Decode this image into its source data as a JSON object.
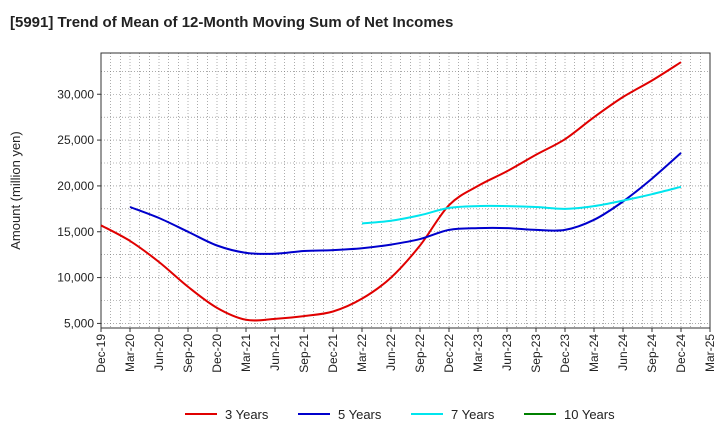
{
  "title": "[5991]  Trend of Mean of 12-Month Moving Sum of Net Incomes",
  "chart_data": {
    "type": "line",
    "title": "[5991]  Trend of Mean of 12-Month Moving Sum of Net Incomes",
    "xlabel": "",
    "ylabel": "Amount (million yen)",
    "ylim": [
      4500,
      34500
    ],
    "yticks": [
      5000,
      10000,
      15000,
      20000,
      25000,
      30000
    ],
    "ytick_labels": [
      "5,000",
      "10,000",
      "15,000",
      "20,000",
      "25,000",
      "30,000"
    ],
    "xticks": [
      "Dec-19",
      "Mar-20",
      "Jun-20",
      "Sep-20",
      "Dec-20",
      "Mar-21",
      "Jun-21",
      "Sep-21",
      "Dec-21",
      "Mar-22",
      "Jun-22",
      "Sep-22",
      "Dec-22",
      "Mar-23",
      "Jun-23",
      "Sep-23",
      "Dec-23",
      "Mar-24",
      "Jun-24",
      "Sep-24",
      "Dec-24",
      "Mar-25"
    ],
    "grid": true,
    "legend_position": "bottom",
    "series": [
      {
        "name": "3 Years",
        "color": "#e00000",
        "points": [
          [
            "Dec-19",
            15700
          ],
          [
            "Mar-20",
            14000
          ],
          [
            "Jun-20",
            11700
          ],
          [
            "Sep-20",
            9000
          ],
          [
            "Dec-20",
            6700
          ],
          [
            "Mar-21",
            5400
          ],
          [
            "Jun-21",
            5500
          ],
          [
            "Sep-21",
            5800
          ],
          [
            "Dec-21",
            6300
          ],
          [
            "Mar-22",
            7700
          ],
          [
            "Jun-22",
            10000
          ],
          [
            "Sep-22",
            13500
          ],
          [
            "Dec-22",
            17900
          ],
          [
            "Mar-23",
            20000
          ],
          [
            "Jun-23",
            21600
          ],
          [
            "Sep-23",
            23400
          ],
          [
            "Dec-23",
            25100
          ],
          [
            "Mar-24",
            27500
          ],
          [
            "Jun-24",
            29700
          ],
          [
            "Sep-24",
            31500
          ],
          [
            "Dec-24",
            33500
          ]
        ]
      },
      {
        "name": "5 Years",
        "color": "#0000cc",
        "points": [
          [
            "Mar-20",
            17700
          ],
          [
            "Jun-20",
            16500
          ],
          [
            "Sep-20",
            15000
          ],
          [
            "Dec-20",
            13500
          ],
          [
            "Mar-21",
            12700
          ],
          [
            "Jun-21",
            12600
          ],
          [
            "Sep-21",
            12900
          ],
          [
            "Dec-21",
            13000
          ],
          [
            "Mar-22",
            13200
          ],
          [
            "Jun-22",
            13600
          ],
          [
            "Sep-22",
            14200
          ],
          [
            "Dec-22",
            15200
          ],
          [
            "Mar-23",
            15400
          ],
          [
            "Jun-23",
            15400
          ],
          [
            "Sep-23",
            15200
          ],
          [
            "Dec-23",
            15200
          ],
          [
            "Mar-24",
            16300
          ],
          [
            "Jun-24",
            18300
          ],
          [
            "Sep-24",
            20800
          ],
          [
            "Dec-24",
            23600
          ]
        ]
      },
      {
        "name": "7 Years",
        "color": "#00e5ee",
        "points": [
          [
            "Mar-22",
            15900
          ],
          [
            "Jun-22",
            16200
          ],
          [
            "Sep-22",
            16800
          ],
          [
            "Dec-22",
            17600
          ],
          [
            "Mar-23",
            17800
          ],
          [
            "Jun-23",
            17800
          ],
          [
            "Sep-23",
            17700
          ],
          [
            "Dec-23",
            17500
          ],
          [
            "Mar-24",
            17800
          ],
          [
            "Jun-24",
            18400
          ],
          [
            "Sep-24",
            19100
          ],
          [
            "Dec-24",
            19900
          ]
        ]
      },
      {
        "name": "10 Years",
        "color": "#008000",
        "points": []
      }
    ]
  }
}
